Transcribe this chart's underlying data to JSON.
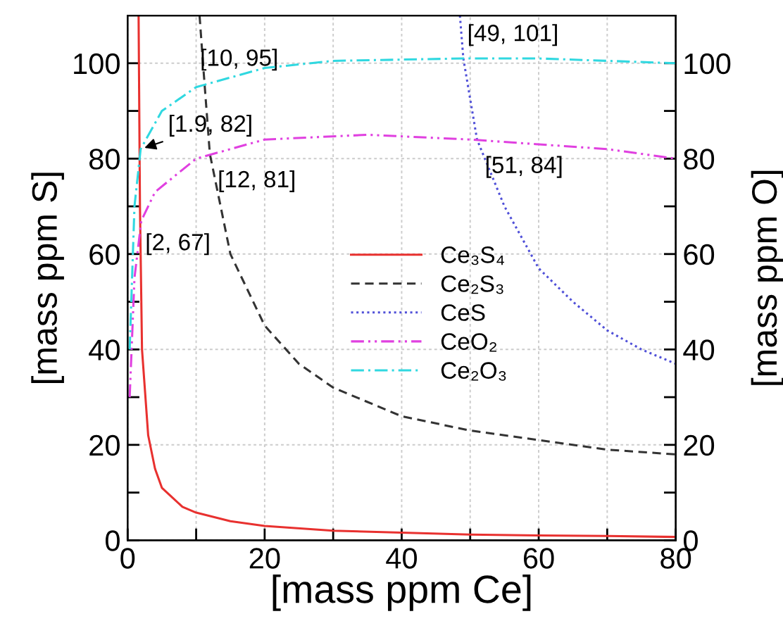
{
  "chart_data": {
    "type": "line",
    "xlabel": "[mass ppm Ce]",
    "ylabel": "[mass ppm S]",
    "y2label": "[mass ppm O]",
    "xlim": [
      0,
      80
    ],
    "ylim": [
      0,
      110
    ],
    "y2lim": [
      0,
      110
    ],
    "xticks": [
      0,
      {
        "value": 10,
        "label": null
      },
      20,
      {
        "value": 30,
        "label": null
      },
      40,
      {
        "value": 50,
        "label": null
      },
      60,
      {
        "value": 70,
        "label": null
      },
      80
    ],
    "yticks": [
      0,
      {
        "value": 10,
        "label": null
      },
      20,
      {
        "value": 30,
        "label": null
      },
      40,
      {
        "value": 50,
        "label": null
      },
      60,
      {
        "value": 70,
        "label": null
      },
      80,
      {
        "value": 90,
        "label": null
      },
      100
    ],
    "y2ticks": [
      0,
      {
        "value": 10,
        "label": null
      },
      20,
      {
        "value": 30,
        "label": null
      },
      40,
      {
        "value": 50,
        "label": null
      },
      60,
      {
        "value": 70,
        "label": null
      },
      80,
      {
        "value": 90,
        "label": null
      },
      100
    ],
    "grid": true,
    "legend": "center",
    "marker": "none",
    "series": [
      {
        "name": "Ce₃S₄",
        "color": "#e8312f",
        "line_style": "solid",
        "x": [
          1.6,
          1.8,
          2.1,
          3,
          4,
          5,
          6.5,
          8,
          10,
          15,
          20,
          30,
          40,
          50,
          60,
          70,
          80
        ],
        "values": [
          110,
          70,
          40,
          22,
          15,
          11,
          9,
          7,
          5.8,
          4,
          3,
          2,
          1.6,
          1.2,
          1,
          0.9,
          0.7
        ]
      },
      {
        "name": "Ce₂S₃",
        "color": "#333333",
        "line_style": "dashed",
        "x": [
          10.5,
          11,
          12,
          15,
          20,
          25,
          30,
          40,
          50,
          60,
          70,
          80
        ],
        "values": [
          110,
          100,
          81,
          60,
          45,
          37,
          32,
          26,
          23,
          21,
          19,
          18
        ]
      },
      {
        "name": "CeS",
        "color": "#5050d8",
        "line_style": "dotted",
        "x": [
          48.5,
          49,
          51,
          55,
          60,
          65,
          70,
          75,
          80
        ],
        "values": [
          110,
          101,
          84,
          70,
          57,
          50,
          44,
          40,
          37
        ]
      },
      {
        "name": "CeO₂",
        "color": "#e040e0",
        "line_style": "dashdotdot",
        "axis": "y2",
        "x": [
          0.3,
          1,
          2,
          4,
          10,
          20,
          35,
          50,
          60,
          70,
          80
        ],
        "values": [
          30,
          55,
          67,
          73,
          80,
          84,
          85,
          84,
          83,
          82,
          80
        ]
      },
      {
        "name": "Ce₂O₃",
        "color": "#30d8e0",
        "line_style": "dashdot",
        "axis": "y2",
        "x": [
          0.3,
          1,
          1.9,
          5,
          10,
          20,
          30,
          49,
          60,
          80
        ],
        "values": [
          40,
          70,
          82,
          90,
          95,
          99,
          100.5,
          101,
          101,
          100
        ]
      }
    ],
    "annotations": [
      {
        "text": "[1.9, 82]",
        "x": 1.9,
        "y": 82
      },
      {
        "text": "[2, 67]",
        "x": 2,
        "y": 67
      },
      {
        "text": "[10, 95]",
        "x": 10,
        "y": 95
      },
      {
        "text": "[12, 81]",
        "x": 12,
        "y": 81
      },
      {
        "text": "[49, 101]",
        "x": 49,
        "y": 101
      },
      {
        "text": "[51, 84]",
        "x": 51,
        "y": 84
      }
    ]
  }
}
